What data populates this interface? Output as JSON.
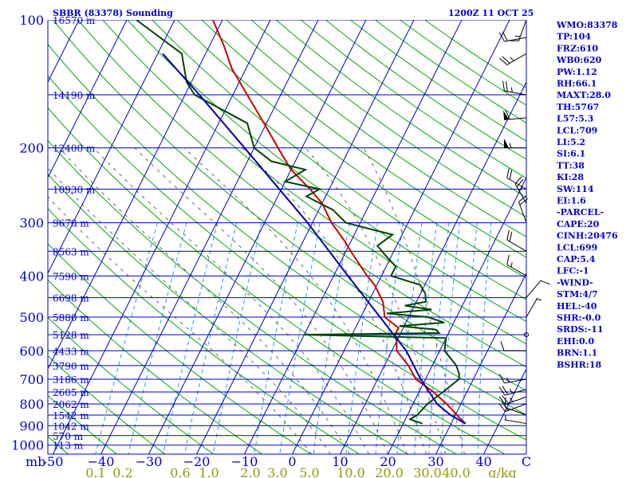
{
  "chart_data": {
    "type": "skew-t sounding",
    "title": "SBBR (83378) Sounding",
    "timestamp": "1200Z 11 OCT 25",
    "pressure_unit_label": "mb",
    "mixing_ratio_unit_label": "g/kg",
    "pressure_levels": [
      100,
      200,
      300,
      400,
      500,
      600,
      700,
      800,
      900,
      1000
    ],
    "temperature_ticks": [
      -50,
      -40,
      -30,
      -20,
      -10,
      0,
      10,
      20,
      30,
      40
    ],
    "temperature_tick_labels": [
      "-50",
      "−40",
      "−30",
      "−20",
      "−10",
      "0",
      "10",
      "20",
      "30",
      "40"
    ],
    "final_temp_label": "C",
    "mixing_ratio_labels": [
      "0.1",
      "0.2",
      "0.6",
      "1.0",
      "2.0",
      "3.0",
      "5.0",
      "10.0",
      "20.0",
      "30.0",
      "40.0"
    ],
    "height_labels": [
      {
        "p": 100,
        "text": "16570 m"
      },
      {
        "p": 150,
        "text": "14190 m"
      },
      {
        "p": 200,
        "text": "12400 m"
      },
      {
        "p": 250,
        "text": "10930 m"
      },
      {
        "p": 300,
        "text": "9670 m"
      },
      {
        "p": 350,
        "text": "8563 m"
      },
      {
        "p": 400,
        "text": "7590 m"
      },
      {
        "p": 450,
        "text": "6698 m"
      },
      {
        "p": 500,
        "text": "5880 m"
      },
      {
        "p": 550,
        "text": "5128 m"
      },
      {
        "p": 600,
        "text": "4433 m"
      },
      {
        "p": 650,
        "text": "3790 m"
      },
      {
        "p": 700,
        "text": "3186 m"
      },
      {
        "p": 750,
        "text": "2605 m"
      },
      {
        "p": 800,
        "text": "2062 m"
      },
      {
        "p": 850,
        "text": "1542 m"
      },
      {
        "p": 900,
        "text": "1042 m"
      },
      {
        "p": 950,
        "text": "570 m"
      },
      {
        "p": 1000,
        "text": "113 m"
      }
    ],
    "temperature_profile": [
      {
        "p": 890,
        "t": 33
      },
      {
        "p": 860,
        "t": 31
      },
      {
        "p": 800,
        "t": 27
      },
      {
        "p": 750,
        "t": 23
      },
      {
        "p": 700,
        "t": 18
      },
      {
        "p": 650,
        "t": 15
      },
      {
        "p": 600,
        "t": 11
      },
      {
        "p": 570,
        "t": 10
      },
      {
        "p": 550,
        "t": 9
      },
      {
        "p": 530,
        "t": 9
      },
      {
        "p": 500,
        "t": 5
      },
      {
        "p": 460,
        "t": 3
      },
      {
        "p": 420,
        "t": -0.5
      },
      {
        "p": 400,
        "t": -3
      },
      {
        "p": 350,
        "t": -9
      },
      {
        "p": 330,
        "t": -11.5
      },
      {
        "p": 300,
        "t": -16
      },
      {
        "p": 270,
        "t": -20
      },
      {
        "p": 250,
        "t": -24
      },
      {
        "p": 225,
        "t": -30
      },
      {
        "p": 200,
        "t": -35
      },
      {
        "p": 175,
        "t": -40.5
      },
      {
        "p": 150,
        "t": -47
      },
      {
        "p": 130,
        "t": -53
      },
      {
        "p": 115,
        "t": -57
      },
      {
        "p": 100,
        "t": -62
      }
    ],
    "dewpoint_profile": [
      {
        "p": 890,
        "td": 24
      },
      {
        "p": 870,
        "td": 21
      },
      {
        "p": 850,
        "td": 22
      },
      {
        "p": 800,
        "td": 23
      },
      {
        "p": 750,
        "td": 25
      },
      {
        "p": 700,
        "td": 27
      },
      {
        "p": 680,
        "td": 26.5
      },
      {
        "p": 650,
        "td": 25
      },
      {
        "p": 600,
        "td": 21
      },
      {
        "p": 560,
        "td": 20
      },
      {
        "p": 550,
        "td": -10
      },
      {
        "p": 545,
        "td": 18
      },
      {
        "p": 535,
        "td": 17
      },
      {
        "p": 525,
        "td": 9
      },
      {
        "p": 515,
        "td": 18
      },
      {
        "p": 500,
        "td": 14
      },
      {
        "p": 490,
        "td": 5
      },
      {
        "p": 480,
        "td": 14
      },
      {
        "p": 470,
        "td": 8
      },
      {
        "p": 460,
        "td": 12
      },
      {
        "p": 440,
        "td": 11
      },
      {
        "p": 420,
        "td": 9
      },
      {
        "p": 400,
        "td": 2
      },
      {
        "p": 380,
        "td": 2
      },
      {
        "p": 360,
        "td": -1
      },
      {
        "p": 340,
        "td": -4
      },
      {
        "p": 320,
        "td": -2
      },
      {
        "p": 300,
        "td": -13
      },
      {
        "p": 280,
        "td": -17
      },
      {
        "p": 260,
        "td": -24
      },
      {
        "p": 250,
        "td": -22
      },
      {
        "p": 240,
        "td": -30
      },
      {
        "p": 225,
        "td": -27
      },
      {
        "p": 215,
        "td": -35
      },
      {
        "p": 200,
        "td": -40
      },
      {
        "p": 175,
        "td": -44
      },
      {
        "p": 150,
        "td": -58
      },
      {
        "p": 140,
        "td": -61
      },
      {
        "p": 120,
        "td": -65
      },
      {
        "p": 100,
        "td": -78
      }
    ],
    "parcel_path": [
      {
        "p": 890,
        "t": 33
      },
      {
        "p": 850,
        "t": 29
      },
      {
        "p": 800,
        "t": 25
      },
      {
        "p": 700,
        "t": 19
      },
      {
        "p": 600,
        "t": 13
      },
      {
        "p": 500,
        "t": 4
      },
      {
        "p": 400,
        "t": -7
      },
      {
        "p": 300,
        "t": -21
      },
      {
        "p": 200,
        "t": -42
      },
      {
        "p": 150,
        "t": -57
      },
      {
        "p": 120,
        "t": -69
      }
    ],
    "wind_profile": [
      {
        "p": 890,
        "dir": 280,
        "spd": 5
      },
      {
        "p": 850,
        "dir": 290,
        "spd": 10
      },
      {
        "p": 800,
        "dir": 250,
        "spd": 20
      },
      {
        "p": 770,
        "dir": 250,
        "spd": 25
      },
      {
        "p": 740,
        "dir": 255,
        "spd": 25
      },
      {
        "p": 700,
        "dir": 260,
        "spd": 15
      },
      {
        "p": 600,
        "dir": 270,
        "spd": 10
      },
      {
        "p": 550,
        "dir": 90,
        "spd": 0
      },
      {
        "p": 500,
        "dir": 30,
        "spd": 5
      },
      {
        "p": 450,
        "dir": 40,
        "spd": 10
      },
      {
        "p": 400,
        "dir": 300,
        "spd": 15
      },
      {
        "p": 350,
        "dir": 300,
        "spd": 20
      },
      {
        "p": 300,
        "dir": 340,
        "spd": 20
      },
      {
        "p": 270,
        "dir": 330,
        "spd": 25
      },
      {
        "p": 250,
        "dir": 300,
        "spd": 20
      },
      {
        "p": 200,
        "dir": 270,
        "spd": 55
      },
      {
        "p": 170,
        "dir": 265,
        "spd": 60
      },
      {
        "p": 150,
        "dir": 280,
        "spd": 25
      },
      {
        "p": 120,
        "dir": 240,
        "spd": 25
      },
      {
        "p": 110,
        "dir": 260,
        "spd": 20
      },
      {
        "p": 100,
        "dir": 200,
        "spd": 15
      }
    ],
    "station_indices": [
      "WMO:83378",
      "TP:104",
      "FRZ:610",
      "WB0:620",
      "PW:1.12",
      "RH:66.1",
      "MAXT:28.0",
      "TH:5767",
      "L57:5.3",
      "LCL:709",
      "LI:5.2",
      "SI:6.1",
      "TT:38",
      "KI:28",
      "SW:114",
      "EI:1.6",
      "-PARCEL-",
      "CAPE:20",
      "CINH:20476",
      "LCL:699",
      "CAP:5.4",
      "LFC:-1",
      "-WIND-",
      "STM:4/7",
      "HEL:-40",
      "SHR:-0.0",
      "SRDS:-11",
      "EHI:0.0",
      "BRN:1.1",
      "BSHR:18"
    ],
    "colors": {
      "isobar": "#0000cc",
      "isotherm": "#0000cc",
      "dry_adiabat": "#00aa00",
      "moist_adiabat": "#666666",
      "mixing_ratio": "#2299ff",
      "temperature": "#cc0000",
      "dewpoint": "#004400",
      "parcel": "#0000aa",
      "wind": "#000000"
    }
  }
}
